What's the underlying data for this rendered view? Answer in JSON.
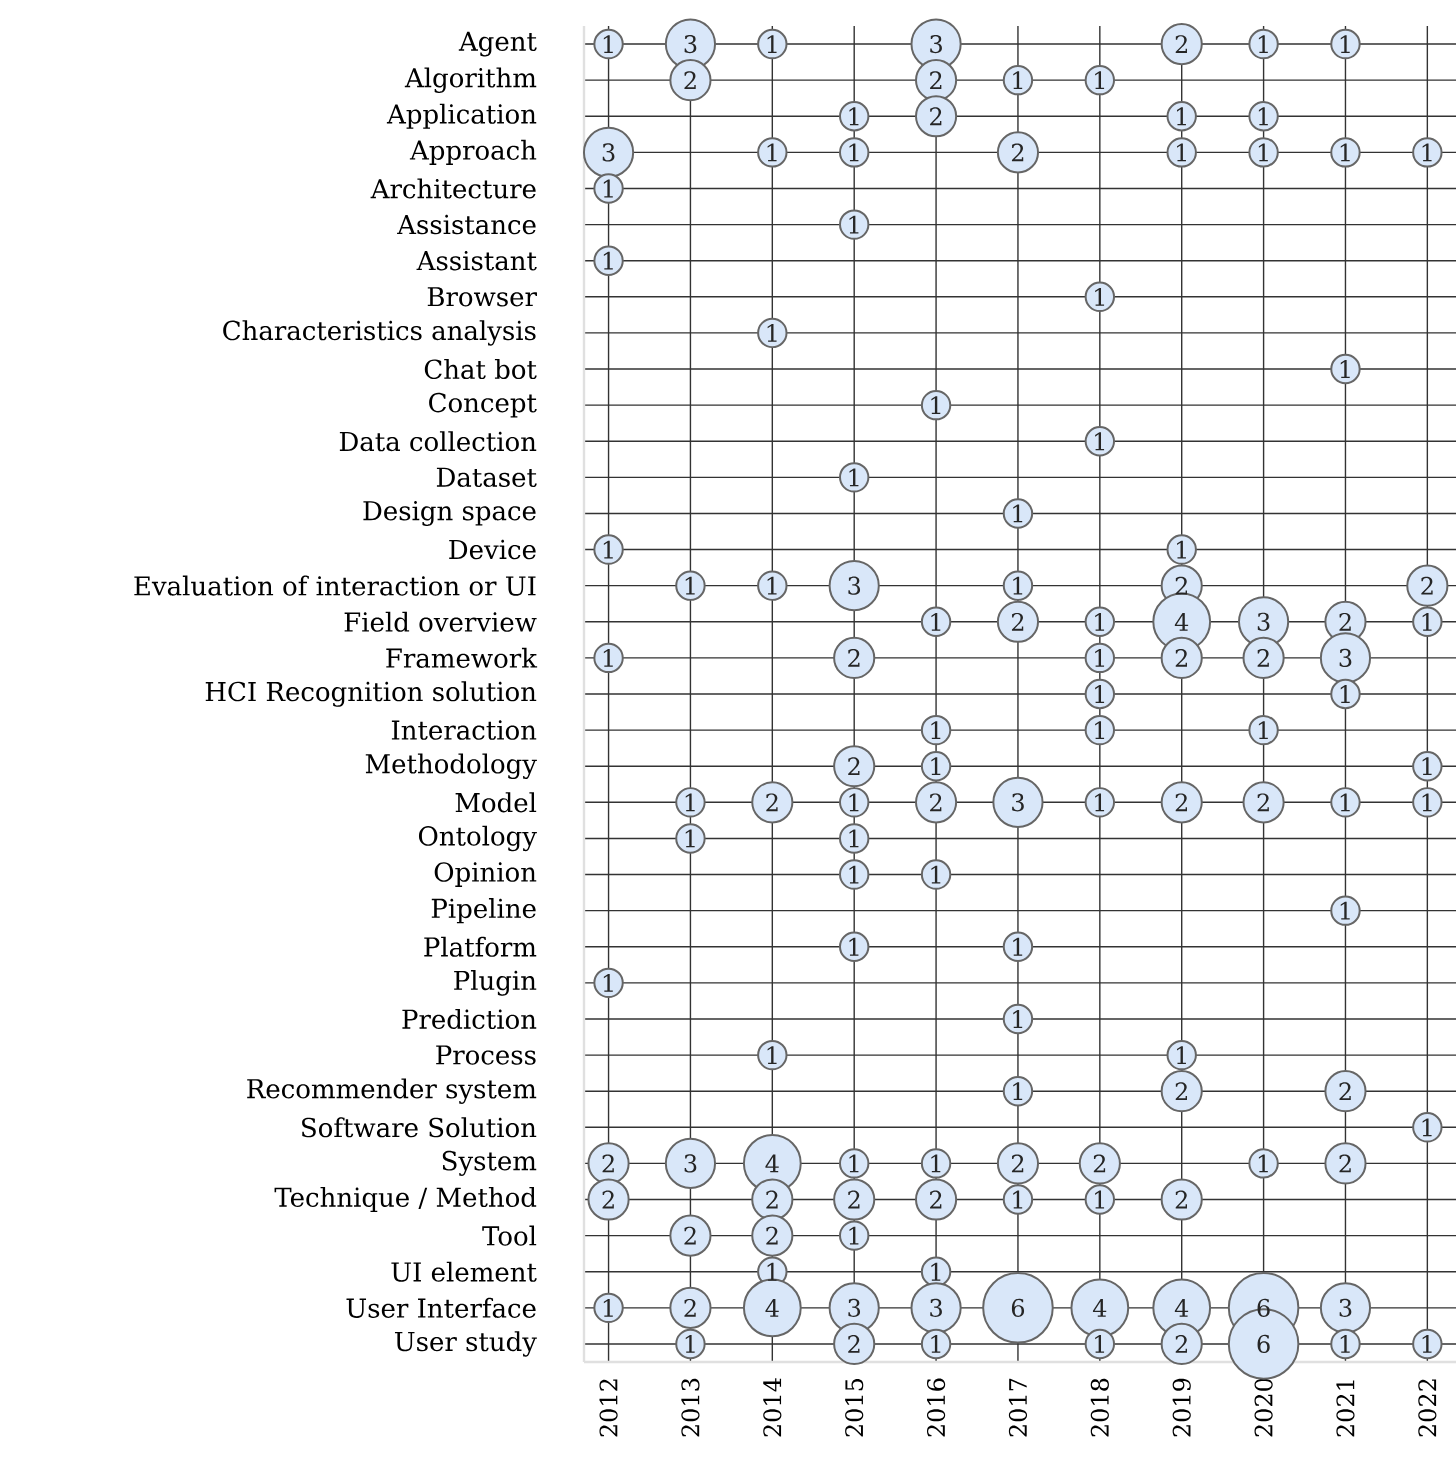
{
  "chart_data": {
    "type": "heatmap",
    "color": "#d9e7f9",
    "grid": true,
    "data_labels": true,
    "categories": [
      "2012",
      "2013",
      "2014",
      "2015",
      "2016",
      "2017",
      "2018",
      "2019",
      "2020",
      "2021",
      "2022"
    ],
    "y_categories": [
      "Agent",
      "Algorithm",
      "Application",
      "Approach",
      "Architecture",
      "Assistance",
      "Assistant",
      "Browser",
      "Characteristics analysis",
      "Chat bot",
      "Concept",
      "Data collection",
      "Dataset",
      "Design space",
      "Device",
      "Evaluation of interaction or UI",
      "Field overview",
      "Framework",
      "HCI Recognition solution",
      "Interaction",
      "Methodology",
      "Model",
      "Ontology",
      "Opinion",
      "Pipeline",
      "Platform",
      "Plugin",
      "Prediction",
      "Process",
      "Recommender system",
      "Software Solution",
      "System",
      "Technique / Method",
      "Tool",
      "UI element",
      "User Interface",
      "User study"
    ],
    "cells": [
      [
        1,
        3,
        1,
        null,
        3,
        null,
        null,
        2,
        1,
        1,
        null
      ],
      [
        null,
        2,
        null,
        null,
        2,
        1,
        1,
        null,
        null,
        null,
        null
      ],
      [
        null,
        null,
        null,
        1,
        2,
        null,
        null,
        1,
        1,
        null,
        null
      ],
      [
        3,
        null,
        1,
        1,
        null,
        2,
        null,
        1,
        1,
        1,
        1
      ],
      [
        1,
        null,
        null,
        null,
        null,
        null,
        null,
        null,
        null,
        null,
        null
      ],
      [
        null,
        null,
        null,
        1,
        null,
        null,
        null,
        null,
        null,
        null,
        null
      ],
      [
        1,
        null,
        null,
        null,
        null,
        null,
        null,
        null,
        null,
        null,
        null
      ],
      [
        null,
        null,
        null,
        null,
        null,
        null,
        1,
        null,
        null,
        null,
        null
      ],
      [
        null,
        null,
        1,
        null,
        null,
        null,
        null,
        null,
        null,
        null,
        null
      ],
      [
        null,
        null,
        null,
        null,
        null,
        null,
        null,
        null,
        null,
        1,
        null
      ],
      [
        null,
        null,
        null,
        null,
        1,
        null,
        null,
        null,
        null,
        null,
        null
      ],
      [
        null,
        null,
        null,
        null,
        null,
        null,
        1,
        null,
        null,
        null,
        null
      ],
      [
        null,
        null,
        null,
        1,
        null,
        null,
        null,
        null,
        null,
        null,
        null
      ],
      [
        null,
        null,
        null,
        null,
        null,
        1,
        null,
        null,
        null,
        null,
        null
      ],
      [
        1,
        null,
        null,
        null,
        null,
        null,
        null,
        1,
        null,
        null,
        null
      ],
      [
        null,
        1,
        1,
        3,
        null,
        1,
        null,
        2,
        null,
        null,
        2
      ],
      [
        null,
        null,
        null,
        null,
        1,
        2,
        1,
        4,
        3,
        2,
        1
      ],
      [
        1,
        null,
        null,
        2,
        null,
        null,
        1,
        2,
        2,
        3,
        null
      ],
      [
        null,
        null,
        null,
        null,
        null,
        null,
        1,
        null,
        null,
        1,
        null
      ],
      [
        null,
        null,
        null,
        null,
        1,
        null,
        1,
        null,
        1,
        null,
        null
      ],
      [
        null,
        null,
        null,
        2,
        1,
        null,
        null,
        null,
        null,
        null,
        1
      ],
      [
        null,
        1,
        2,
        1,
        2,
        3,
        1,
        2,
        2,
        1,
        1
      ],
      [
        null,
        1,
        null,
        1,
        null,
        null,
        null,
        null,
        null,
        null,
        null
      ],
      [
        null,
        null,
        null,
        1,
        1,
        null,
        null,
        null,
        null,
        null,
        null
      ],
      [
        null,
        null,
        null,
        null,
        null,
        null,
        null,
        null,
        null,
        1,
        null
      ],
      [
        null,
        null,
        null,
        1,
        null,
        1,
        null,
        null,
        null,
        null,
        null
      ],
      [
        1,
        null,
        null,
        null,
        null,
        null,
        null,
        null,
        null,
        null,
        null
      ],
      [
        null,
        null,
        null,
        null,
        null,
        1,
        null,
        null,
        null,
        null,
        null
      ],
      [
        null,
        null,
        1,
        null,
        null,
        null,
        null,
        1,
        null,
        null,
        null
      ],
      [
        null,
        null,
        null,
        null,
        null,
        1,
        null,
        2,
        null,
        2,
        null
      ],
      [
        null,
        null,
        null,
        null,
        null,
        null,
        null,
        null,
        null,
        null,
        1
      ],
      [
        2,
        3,
        4,
        1,
        1,
        2,
        2,
        null,
        1,
        2,
        null
      ],
      [
        2,
        null,
        2,
        2,
        2,
        1,
        1,
        2,
        null,
        null,
        null
      ],
      [
        null,
        2,
        2,
        1,
        null,
        null,
        null,
        null,
        null,
        null,
        null
      ],
      [
        null,
        null,
        1,
        null,
        1,
        null,
        null,
        null,
        null,
        null,
        null
      ],
      [
        1,
        2,
        4,
        3,
        3,
        6,
        4,
        4,
        6,
        3,
        null
      ],
      [
        null,
        1,
        null,
        2,
        1,
        null,
        1,
        2,
        6,
        1,
        1
      ]
    ]
  }
}
